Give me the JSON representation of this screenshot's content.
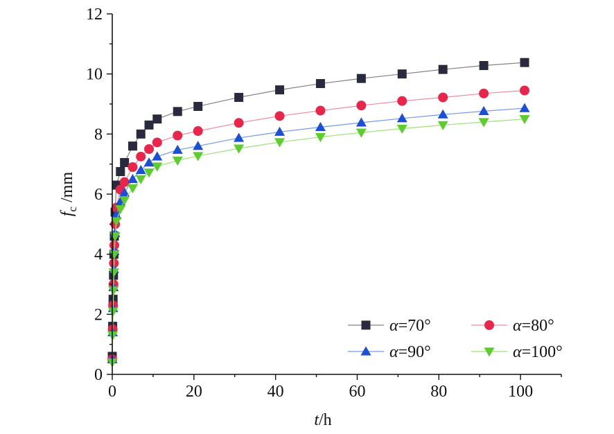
{
  "chart_data": {
    "type": "line",
    "title": "",
    "xlabel": {
      "var": "t",
      "unit": "/h"
    },
    "ylabel": {
      "var": "f",
      "sub": "c",
      "unit": " /mm"
    },
    "xlim": [
      0,
      110
    ],
    "ylim": [
      0,
      12
    ],
    "xticks": [
      0,
      20,
      40,
      60,
      80,
      100
    ],
    "yticks": [
      0,
      2,
      4,
      6,
      8,
      10,
      12
    ],
    "grid": false,
    "legend_position": "bottom-right",
    "series": [
      {
        "name": "α=70°",
        "name_var": "α",
        "name_rest": "=70°",
        "marker": "square",
        "color": "#2a2a3e",
        "line_color": "#808080",
        "x": [
          0,
          0.1,
          0.2,
          0.3,
          0.4,
          0.5,
          0.7,
          1,
          2,
          3,
          5,
          7,
          9,
          11,
          16,
          21,
          31,
          41,
          51,
          61,
          71,
          81,
          91,
          101
        ],
        "y": [
          0.6,
          1.6,
          2.5,
          3.3,
          4.0,
          4.6,
          5.4,
          6.3,
          6.75,
          7.05,
          7.6,
          8.0,
          8.3,
          8.5,
          8.75,
          8.92,
          9.22,
          9.47,
          9.68,
          9.85,
          10.0,
          10.15,
          10.28,
          10.38
        ]
      },
      {
        "name": "α=80°",
        "name_var": "α",
        "name_rest": "=80°",
        "marker": "circle",
        "color": "#e8254a",
        "line_color": "#f08aa0",
        "x": [
          0,
          0.1,
          0.2,
          0.3,
          0.4,
          0.5,
          0.7,
          1,
          2,
          3,
          5,
          7,
          9,
          11,
          16,
          21,
          31,
          41,
          51,
          61,
          71,
          81,
          91,
          101
        ],
        "y": [
          0.5,
          1.5,
          2.3,
          3.0,
          3.7,
          4.3,
          5.0,
          5.55,
          6.15,
          6.4,
          6.9,
          7.25,
          7.5,
          7.72,
          7.95,
          8.1,
          8.37,
          8.6,
          8.78,
          8.95,
          9.1,
          9.22,
          9.35,
          9.45
        ]
      },
      {
        "name": "α=90°",
        "name_var": "α",
        "name_rest": "=90°",
        "marker": "triangle-up",
        "color": "#1c4fd8",
        "line_color": "#6f9ae8",
        "x": [
          0,
          0.1,
          0.2,
          0.3,
          0.4,
          0.5,
          0.7,
          1,
          2,
          3,
          5,
          7,
          9,
          11,
          16,
          21,
          31,
          41,
          51,
          61,
          71,
          81,
          91,
          101
        ],
        "y": [
          0.5,
          1.4,
          2.2,
          2.9,
          3.5,
          4.1,
          4.7,
          5.3,
          5.75,
          6.05,
          6.5,
          6.8,
          7.05,
          7.25,
          7.47,
          7.6,
          7.87,
          8.07,
          8.23,
          8.38,
          8.52,
          8.65,
          8.76,
          8.86
        ]
      },
      {
        "name": "α=100°",
        "name_var": "α",
        "name_rest": "=100°",
        "marker": "triangle-down",
        "color": "#5dcc2f",
        "line_color": "#9ee07a",
        "x": [
          0,
          0.1,
          0.2,
          0.3,
          0.4,
          0.5,
          0.7,
          1,
          2,
          3,
          5,
          7,
          9,
          11,
          16,
          21,
          31,
          41,
          51,
          61,
          71,
          81,
          91,
          101
        ],
        "y": [
          0.4,
          1.3,
          2.1,
          2.8,
          3.4,
          4.0,
          4.6,
          5.1,
          5.5,
          5.8,
          6.2,
          6.5,
          6.72,
          6.92,
          7.12,
          7.27,
          7.52,
          7.73,
          7.9,
          8.05,
          8.18,
          8.3,
          8.4,
          8.5
        ]
      }
    ]
  }
}
